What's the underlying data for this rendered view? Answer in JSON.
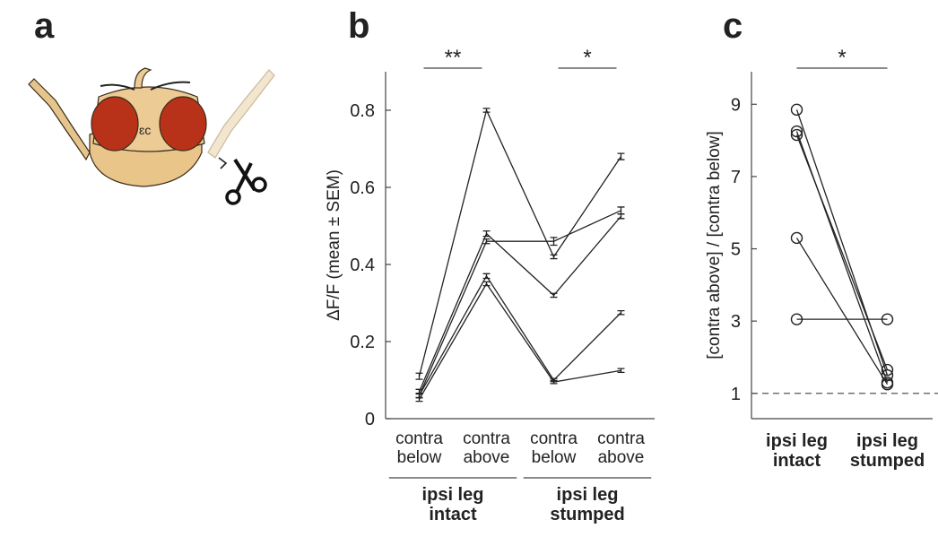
{
  "panel_labels": [
    "a",
    "b",
    "c"
  ],
  "chart_data": [
    {
      "type": "line",
      "ylabel": "ΔF/F (mean ± SEM)",
      "categories": [
        "contra below",
        "contra above",
        "contra below",
        "contra above"
      ],
      "groups": [
        "ipsi leg intact",
        "ipsi leg stumped"
      ],
      "annotations": [
        "**",
        "*"
      ],
      "ylim": [
        0,
        0.9
      ],
      "yticks": [
        0,
        0.2,
        0.4,
        0.6,
        0.8
      ],
      "color": "#222222",
      "series": [
        {
          "values": [
            0.11,
            0.8,
            0.42,
            0.68
          ],
          "errors": [
            0.008,
            0.005,
            0.005,
            0.008
          ]
        },
        {
          "values": [
            0.07,
            0.48,
            0.32,
            0.525
          ],
          "errors": [
            0.006,
            0.007,
            0.005,
            0.006
          ]
        },
        {
          "values": [
            0.06,
            0.46,
            0.46,
            0.54
          ],
          "errors": [
            0.006,
            0.006,
            0.01,
            0.009
          ]
        },
        {
          "values": [
            0.06,
            0.37,
            0.1,
            0.275
          ],
          "errors": [
            0.006,
            0.006,
            0.004,
            0.005
          ]
        },
        {
          "values": [
            0.05,
            0.35,
            0.095,
            0.125
          ],
          "errors": [
            0.005,
            0.005,
            0.004,
            0.005
          ]
        }
      ]
    },
    {
      "type": "paired",
      "ylabel": "[contra above] / [contra below]",
      "categories": [
        "ipsi leg intact",
        "ipsi leg stumped"
      ],
      "annotations": [
        "*"
      ],
      "ylim": [
        0.3,
        9.9
      ],
      "yticks": [
        1,
        3,
        5,
        7,
        9
      ],
      "hline": 1,
      "color": "#222222",
      "series": [
        {
          "values": [
            8.85,
            1.5
          ]
        },
        {
          "values": [
            8.25,
            1.3
          ]
        },
        {
          "values": [
            8.15,
            1.65
          ]
        },
        {
          "values": [
            5.3,
            1.25
          ]
        },
        {
          "values": [
            3.05,
            3.05
          ]
        }
      ]
    }
  ]
}
